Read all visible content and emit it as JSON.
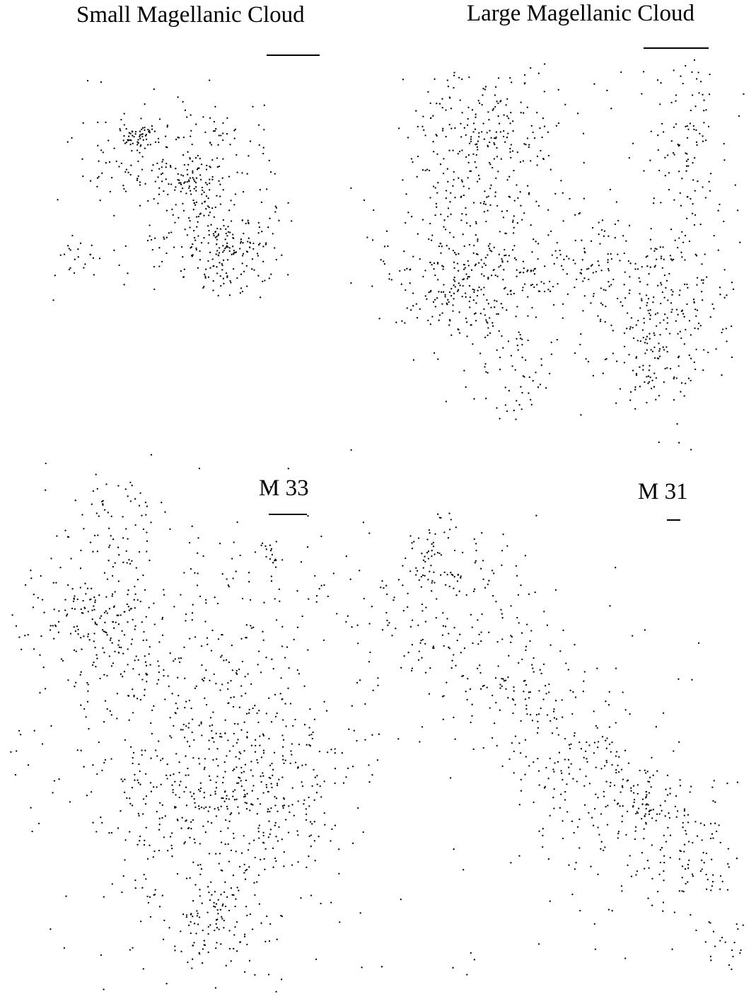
{
  "figure": {
    "point_color": "#000000",
    "background_color": "#ffffff"
  },
  "chart_data": [
    {
      "type": "scatter",
      "title": "Small Magellanic Cloud",
      "xlabel": "",
      "ylabel": "",
      "grid": false,
      "legend": "none",
      "scale_bar": true,
      "clusters": [
        {
          "cx": 0.45,
          "cy": 0.4,
          "sx": 0.22,
          "sy": 0.13,
          "n": 170
        },
        {
          "cx": 0.7,
          "cy": 0.77,
          "sx": 0.12,
          "sy": 0.11,
          "n": 210
        },
        {
          "cx": 0.35,
          "cy": 0.3,
          "sx": 0.04,
          "sy": 0.03,
          "n": 45
        },
        {
          "cx": 0.57,
          "cy": 0.5,
          "sx": 0.06,
          "sy": 0.06,
          "n": 60
        },
        {
          "cx": 0.1,
          "cy": 0.82,
          "sx": 0.05,
          "sy": 0.04,
          "n": 22
        },
        {
          "cx": 0.5,
          "cy": 0.55,
          "sx": 0.32,
          "sy": 0.3,
          "n": 70
        }
      ]
    },
    {
      "type": "scatter",
      "title": "Large Magellanic Cloud",
      "xlabel": "",
      "ylabel": "",
      "grid": false,
      "legend": "none",
      "scale_bar": true,
      "clusters": [
        {
          "cx": 0.33,
          "cy": 0.24,
          "sx": 0.09,
          "sy": 0.1,
          "n": 260
        },
        {
          "cx": 0.3,
          "cy": 0.57,
          "sx": 0.11,
          "sy": 0.08,
          "n": 260
        },
        {
          "cx": 0.6,
          "cy": 0.54,
          "sx": 0.18,
          "sy": 0.08,
          "n": 190
        },
        {
          "cx": 0.8,
          "cy": 0.66,
          "sx": 0.08,
          "sy": 0.1,
          "n": 140
        },
        {
          "cx": 0.85,
          "cy": 0.2,
          "sx": 0.05,
          "sy": 0.13,
          "n": 110
        },
        {
          "cx": 0.74,
          "cy": 0.76,
          "sx": 0.05,
          "sy": 0.07,
          "n": 60
        },
        {
          "cx": 0.42,
          "cy": 0.82,
          "sx": 0.05,
          "sy": 0.06,
          "n": 45
        },
        {
          "cx": 0.5,
          "cy": 0.4,
          "sx": 0.45,
          "sy": 0.35,
          "n": 150
        }
      ]
    },
    {
      "type": "scatter",
      "title": "M 33",
      "xlabel": "",
      "ylabel": "",
      "grid": false,
      "legend": "none",
      "scale_bar": true,
      "clusters": [
        {
          "cx": 0.52,
          "cy": 0.55,
          "sx": 0.2,
          "sy": 0.17,
          "n": 650
        },
        {
          "cx": 0.26,
          "cy": 0.35,
          "sx": 0.09,
          "sy": 0.06,
          "n": 170
        },
        {
          "cx": 0.66,
          "cy": 0.65,
          "sx": 0.12,
          "sy": 0.08,
          "n": 170
        },
        {
          "cx": 0.56,
          "cy": 0.88,
          "sx": 0.06,
          "sy": 0.04,
          "n": 90
        },
        {
          "cx": 0.3,
          "cy": 0.17,
          "sx": 0.06,
          "sy": 0.05,
          "n": 55
        },
        {
          "cx": 0.7,
          "cy": 0.23,
          "sx": 0.02,
          "sy": 0.02,
          "n": 18
        },
        {
          "cx": 0.5,
          "cy": 0.45,
          "sx": 0.5,
          "sy": 0.45,
          "n": 260
        }
      ]
    },
    {
      "type": "scatter",
      "title": "M 31",
      "xlabel": "",
      "ylabel": "",
      "grid": false,
      "legend": "none",
      "scale_bar": true,
      "clusters": [
        {
          "band": true,
          "x1": 0.12,
          "y1": 0.1,
          "x2": 0.85,
          "y2": 0.8,
          "width": 0.1,
          "n": 560
        },
        {
          "cx": 0.74,
          "cy": 0.62,
          "sx": 0.04,
          "sy": 0.03,
          "n": 40
        },
        {
          "cx": 0.88,
          "cy": 0.78,
          "sx": 0.05,
          "sy": 0.05,
          "n": 40
        },
        {
          "cx": 0.95,
          "cy": 0.93,
          "sx": 0.04,
          "sy": 0.03,
          "n": 22
        },
        {
          "cx": 0.2,
          "cy": 0.13,
          "sx": 0.03,
          "sy": 0.03,
          "n": 25
        },
        {
          "cx": 0.5,
          "cy": 0.5,
          "sx": 0.45,
          "sy": 0.45,
          "n": 70
        }
      ]
    }
  ]
}
